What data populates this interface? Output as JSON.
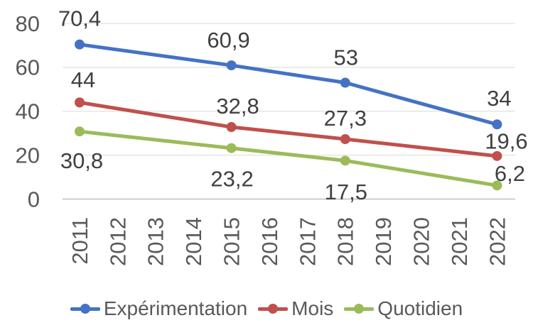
{
  "chart_data": {
    "type": "line",
    "title": "",
    "xlabel": "",
    "ylabel": "",
    "categories": [
      "2011",
      "2012",
      "2013",
      "2014",
      "2015",
      "2016",
      "2017",
      "2018",
      "2019",
      "2020",
      "2021",
      "2022"
    ],
    "y_axis": {
      "min": 0,
      "max": 80,
      "step": 20,
      "ticks": [
        0,
        20,
        40,
        60,
        80
      ]
    },
    "grid": true,
    "legend_position": "bottom",
    "decimal_separator": ",",
    "series": [
      {
        "name": "Expérimentation",
        "color": "#4472C4",
        "points": [
          {
            "year": 2011,
            "value": 70.4,
            "label": "70,4",
            "dx": 0,
            "dy": -37
          },
          {
            "year": 2015,
            "value": 60.9,
            "label": "60,9",
            "dx": -4,
            "dy": -36
          },
          {
            "year": 2018,
            "value": 53,
            "label": "53",
            "dx": 1,
            "dy": -36
          },
          {
            "year": 2022,
            "value": 34,
            "label": "34",
            "dx": 3,
            "dy": -37
          }
        ]
      },
      {
        "name": "Mois",
        "color": "#C0504D",
        "points": [
          {
            "year": 2011,
            "value": 44,
            "label": "44",
            "dx": 5,
            "dy": -32
          },
          {
            "year": 2015,
            "value": 32.8,
            "label": "32,8",
            "dx": 9,
            "dy": -30
          },
          {
            "year": 2018,
            "value": 27.3,
            "label": "27,3",
            "dx": 0,
            "dy": -30
          },
          {
            "year": 2022,
            "value": 19.6,
            "label": "19,6",
            "dx": 13,
            "dy": -21
          }
        ]
      },
      {
        "name": "Quotidien",
        "color": "#9BBB59",
        "points": [
          {
            "year": 2011,
            "value": 30.8,
            "label": "30,8",
            "dx": 3,
            "dy": 41
          },
          {
            "year": 2015,
            "value": 23.2,
            "label": "23,2",
            "dx": 1,
            "dy": 43
          },
          {
            "year": 2018,
            "value": 17.5,
            "label": "17,5",
            "dx": 1,
            "dy": 44
          },
          {
            "year": 2022,
            "value": 6.2,
            "label": "6,2",
            "dx": 18,
            "dy": -17
          }
        ]
      }
    ],
    "colors": {
      "grid": "#D9D9D9",
      "axis_line": "#BFBFBF",
      "axis_text": "#595959",
      "data_label_text": "#404040"
    }
  }
}
